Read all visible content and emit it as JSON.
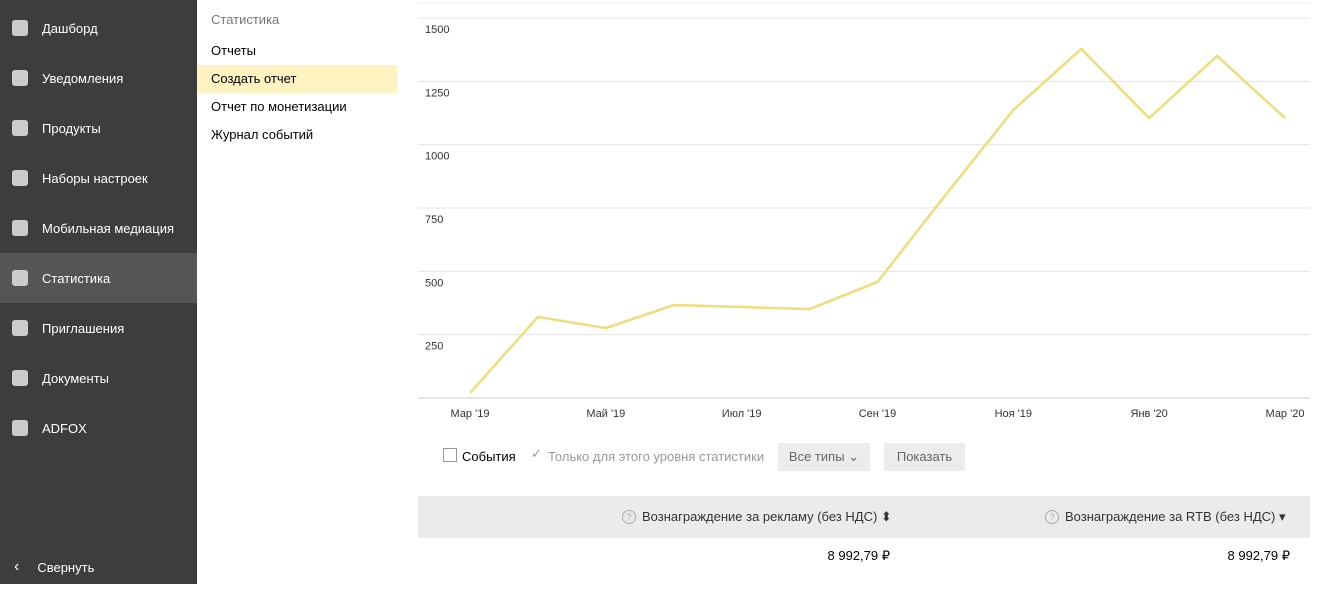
{
  "sidebar": {
    "items": [
      "Дашборд",
      "Уведомления",
      "Продукты",
      "Наборы настроек",
      "Мобильная медиация",
      "Статистика",
      "Приглашения",
      "Документы",
      "ADFOX"
    ],
    "active": 5,
    "collapse": "Свернуть"
  },
  "submenu": {
    "title": "Статистика",
    "items": [
      "Отчеты",
      "Создать отчет",
      "Отчет по монетизации",
      "Журнал событий"
    ],
    "active": 1
  },
  "chart_data": {
    "type": "line",
    "categories": [
      "Мар '19",
      null,
      "Май '19",
      null,
      "Июл '19",
      null,
      "Сен '19",
      null,
      "Ноя '19",
      null,
      "Янв '20",
      null,
      "Мар '20"
    ],
    "series": [
      {
        "color": "#f0dc78",
        "values": [
          20,
          320,
          276,
          367,
          359,
          351,
          458,
          801,
          1137,
          1378,
          1105,
          1350,
          1105
        ]
      }
    ],
    "ylim": [
      0,
      1500
    ],
    "yticks": [
      250,
      500,
      750,
      1000,
      1250,
      1500
    ],
    "grid": true
  },
  "controls": {
    "events": "События",
    "level": "Только для этого уровня статистики",
    "types": "Все типы",
    "show": "Показать"
  },
  "table": {
    "headers": [
      "Вознаграждение за рекламу (без НДС)",
      "Вознаграждение за RTB (без НДС)"
    ],
    "rows": [
      [
        "8 992,79 ₽",
        "8 992,79 ₽"
      ]
    ]
  }
}
